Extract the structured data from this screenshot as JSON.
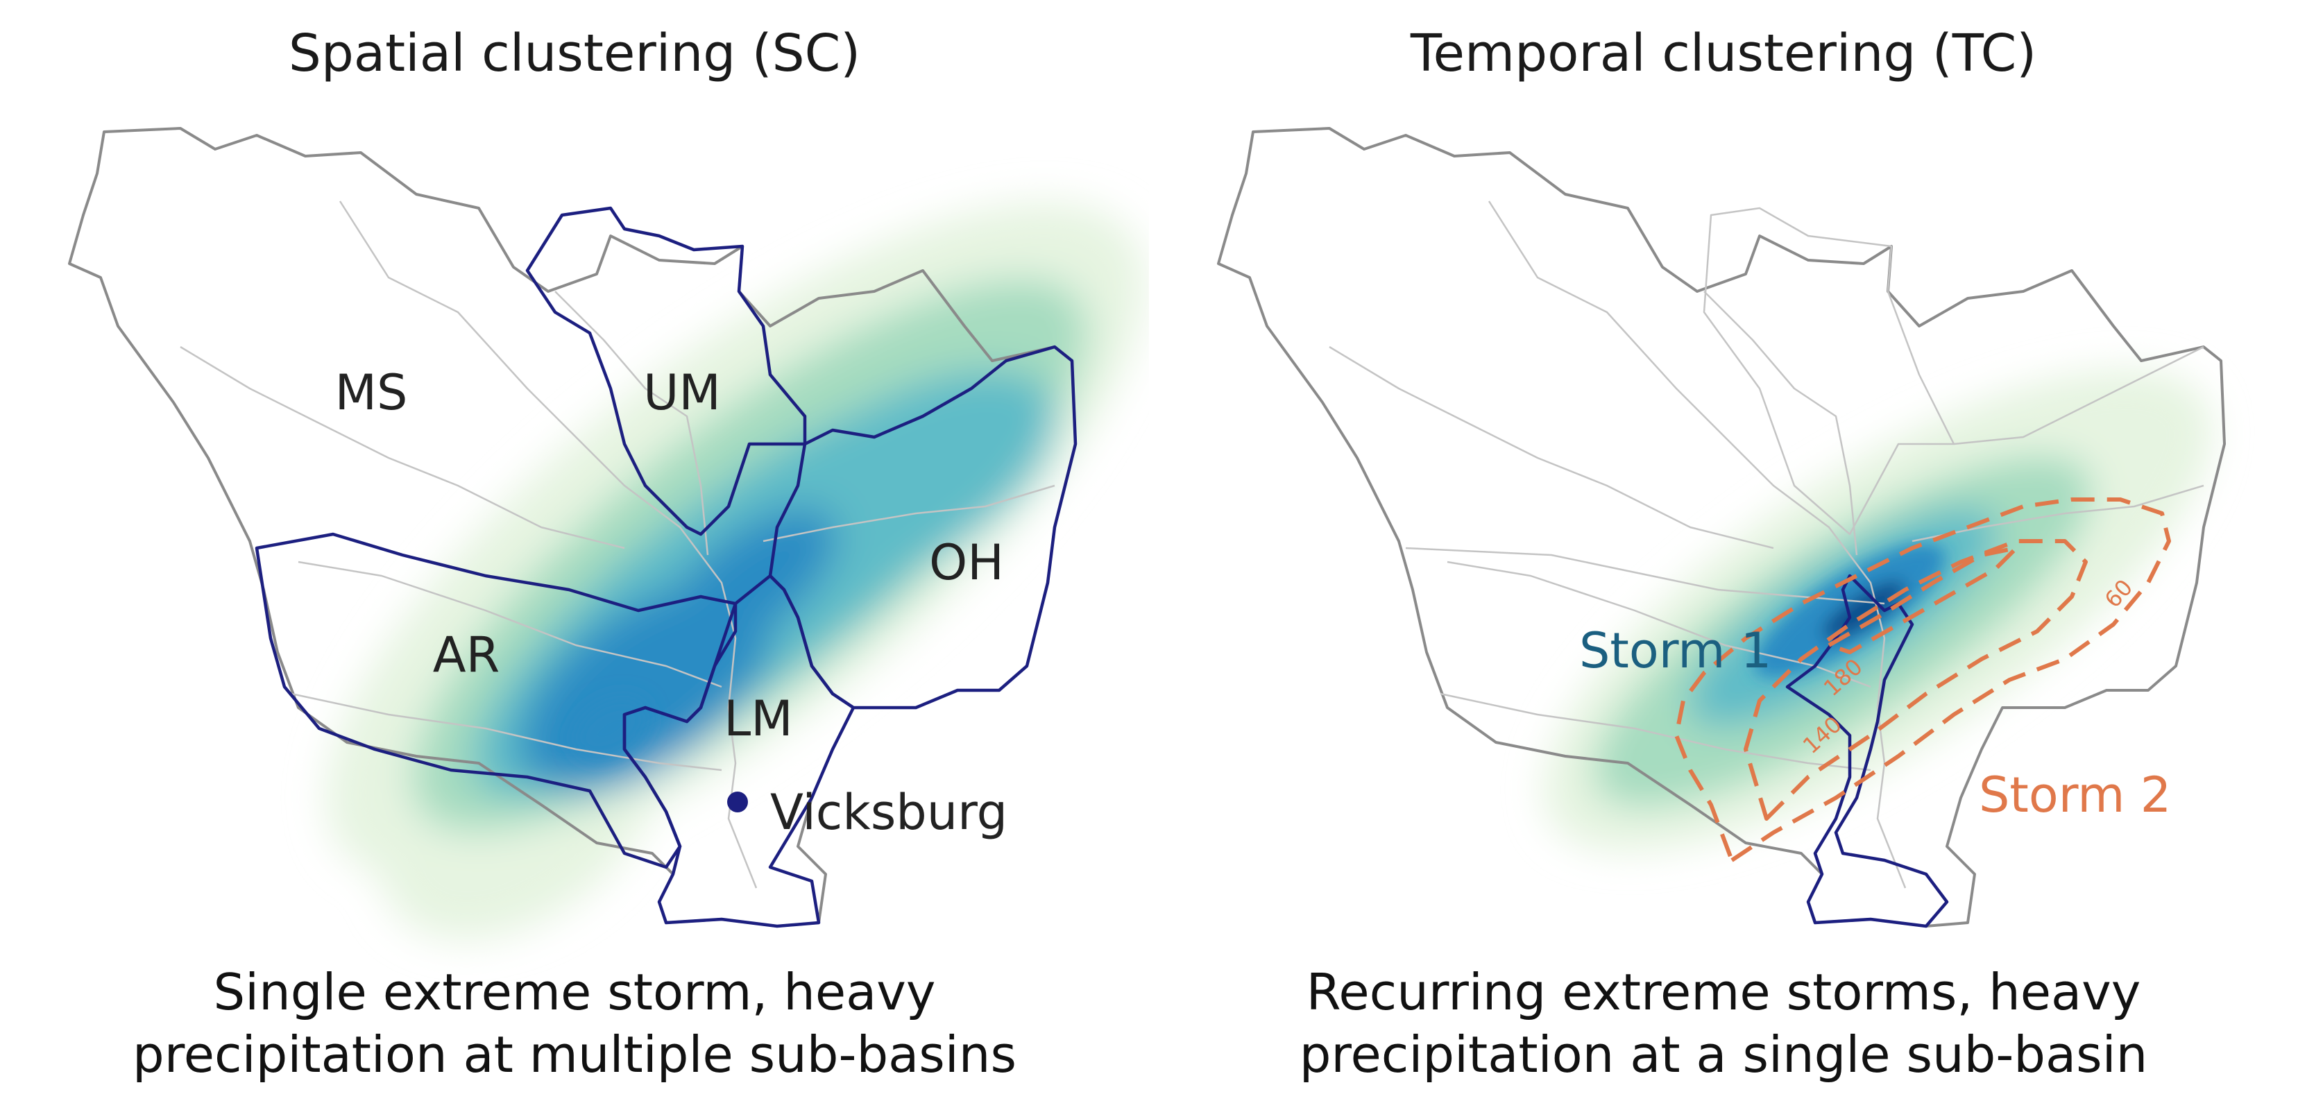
{
  "colors": {
    "basin_outline": "#8a8a8a",
    "river": "#c4c4c4",
    "subbasin_highlight": "#1c1f80",
    "precip_light": "#e6f4e1",
    "precip_mid": "#a6dcc0",
    "precip_teal": "#5fbcc8",
    "precip_blue": "#2b8cc4",
    "precip_dark": "#0b4d8c",
    "storm1": "#1b5f80",
    "storm2": "#e0784a",
    "city_marker": "#1c1f80"
  },
  "left": {
    "title": "Spatial clustering (SC)",
    "caption_line1": "Single extreme storm, heavy",
    "caption_line2": "precipitation at multiple sub-basins",
    "basins": {
      "ms": "MS",
      "um": "UM",
      "oh": "OH",
      "ar": "AR",
      "lm": "LM"
    },
    "city": "Vicksburg"
  },
  "right": {
    "title": "Temporal clustering (TC)",
    "caption_line1": "Recurring extreme storms, heavy",
    "caption_line2": "precipitation at a single sub-basin",
    "storm1_label": "Storm 1",
    "storm2_label": "Storm 2",
    "contours": [
      "60",
      "140",
      "180"
    ]
  }
}
